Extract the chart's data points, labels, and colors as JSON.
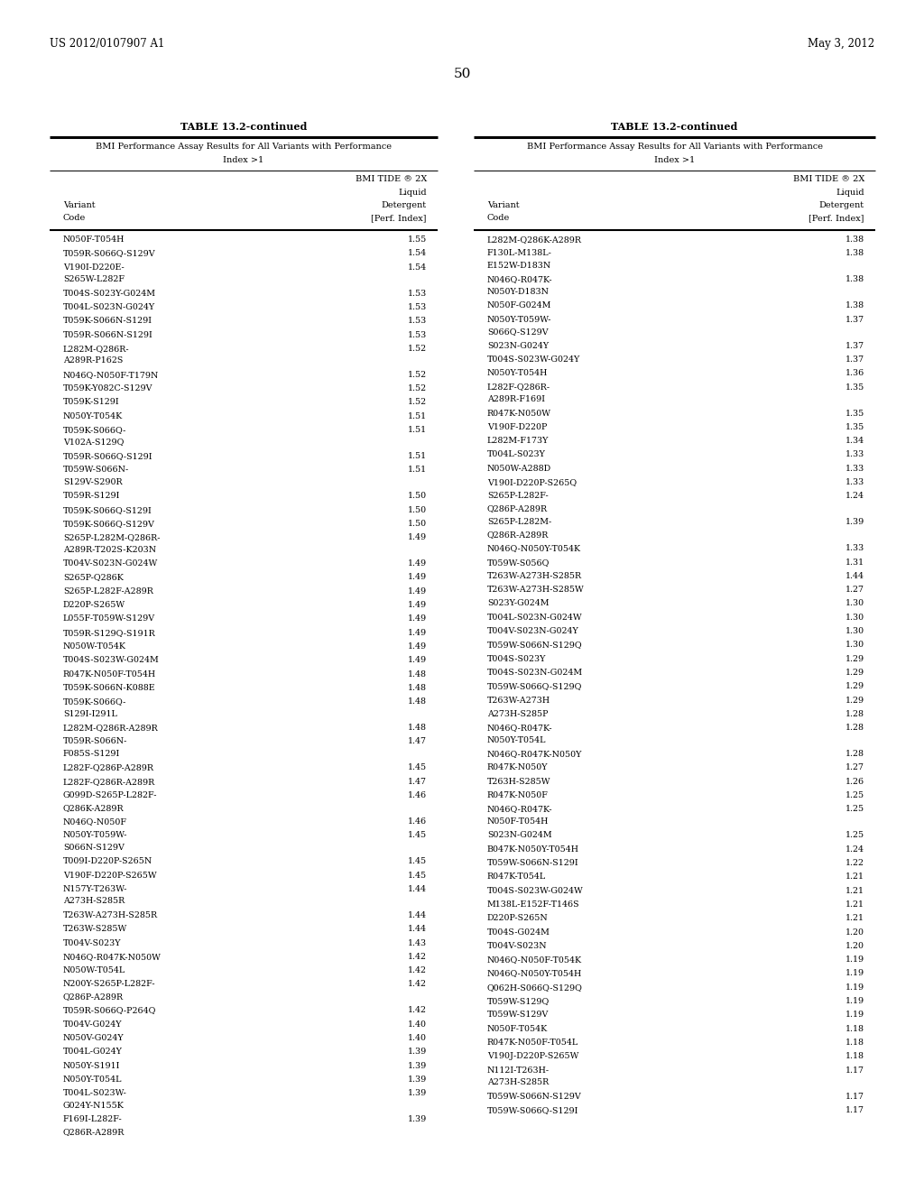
{
  "header_left": "US 2012/0107907 A1",
  "header_right": "May 3, 2012",
  "page_number": "50",
  "table_title": "TABLE 13.2-continued",
  "table_subtitle_line1": "BMI Performance Assay Results for All Variants with Performance",
  "table_subtitle_line2": "Index >1",
  "col1_header_line1": "Variant",
  "col1_header_line2": "Code",
  "col2_header_line1": "BMI TIDE ® 2X",
  "col2_header_line2": "Liquid",
  "col2_header_line3": "Detergent",
  "col2_header_line4": "[Perf. Index]",
  "left_data": [
    [
      "N050F-T054H",
      "1.55"
    ],
    [
      "T059R-S066Q-S129V",
      "1.54"
    ],
    [
      "V190I-D220E-S265W-L282F",
      "1.54"
    ],
    [
      "T004S-S023Y-G024M",
      "1.53"
    ],
    [
      "T004L-S023N-G024Y",
      "1.53"
    ],
    [
      "T059K-S066N-S129I",
      "1.53"
    ],
    [
      "T059R-S066N-S129I",
      "1.53"
    ],
    [
      "L282M-Q286R-A289R-P162S",
      "1.52"
    ],
    [
      "N046Q-N050F-T179N",
      "1.52"
    ],
    [
      "T059K-Y082C-S129V",
      "1.52"
    ],
    [
      "T059K-S129I",
      "1.52"
    ],
    [
      "N050Y-T054K",
      "1.51"
    ],
    [
      "T059K-S066Q-V102A-S129Q",
      "1.51"
    ],
    [
      "T059R-S066Q-S129I",
      "1.51"
    ],
    [
      "T059W-S066N-S129V-S290R",
      "1.51"
    ],
    [
      "T059R-S129I",
      "1.50"
    ],
    [
      "T059K-S066Q-S129I",
      "1.50"
    ],
    [
      "T059K-S066Q-S129V",
      "1.50"
    ],
    [
      "S265P-L282M-Q286R-A289R-T202S-K203N",
      "1.49"
    ],
    [
      "T004V-S023N-G024W",
      "1.49"
    ],
    [
      "S265P-Q286K",
      "1.49"
    ],
    [
      "S265P-L282F-A289R",
      "1.49"
    ],
    [
      "D220P-S265W",
      "1.49"
    ],
    [
      "L055F-T059W-S129V",
      "1.49"
    ],
    [
      "T059R-S129Q-S191R",
      "1.49"
    ],
    [
      "N050W-T054K",
      "1.49"
    ],
    [
      "T004S-S023W-G024M",
      "1.49"
    ],
    [
      "R047K-N050F-T054H",
      "1.48"
    ],
    [
      "T059K-S066N-K088E",
      "1.48"
    ],
    [
      "T059K-S066Q-S129I-I291L",
      "1.48"
    ],
    [
      "L282M-Q286R-A289R",
      "1.48"
    ],
    [
      "T059R-S066N-F085S-S129I",
      "1.47"
    ],
    [
      "L282F-Q286P-A289R",
      "1.45"
    ],
    [
      "L282F-Q286R-A289R",
      "1.47"
    ],
    [
      "G099D-S265P-L282F-Q286K-A289R",
      "1.46"
    ],
    [
      "N046Q-N050F",
      "1.46"
    ],
    [
      "N050Y-T059W-S066N-S129V",
      "1.45"
    ],
    [
      "T009I-D220P-S265N",
      "1.45"
    ],
    [
      "V190F-D220P-S265W",
      "1.45"
    ],
    [
      "N157Y-T263W-A273H-S285R",
      "1.44"
    ],
    [
      "T263W-A273H-S285R",
      "1.44"
    ],
    [
      "T263W-S285W",
      "1.44"
    ],
    [
      "T004V-S023Y",
      "1.43"
    ],
    [
      "N046Q-R047K-N050W",
      "1.42"
    ],
    [
      "N050W-T054L",
      "1.42"
    ],
    [
      "N200Y-S265P-L282F-Q286P-A289R",
      "1.42"
    ],
    [
      "T059R-S066Q-P264Q",
      "1.42"
    ],
    [
      "T004V-G024Y",
      "1.40"
    ],
    [
      "N050V-G024Y",
      "1.40"
    ],
    [
      "T004L-G024Y",
      "1.39"
    ],
    [
      "N050Y-S191I",
      "1.39"
    ],
    [
      "N050Y-T054L",
      "1.39"
    ],
    [
      "T004L-S023W-G024Y-N155K",
      "1.39"
    ],
    [
      "F169I-L282F-Q286R-A289R",
      "1.39"
    ]
  ],
  "right_data": [
    [
      "L282M-Q286K-A289R",
      "1.38"
    ],
    [
      "F130L-M138L-E152W-D183N",
      "1.38"
    ],
    [
      "N046Q-R047K-N050Y-D183N",
      "1.38"
    ],
    [
      "N050F-G024M",
      "1.38"
    ],
    [
      "N050Y-T059W-S066Q-S129V",
      "1.37"
    ],
    [
      "S023N-G024Y",
      "1.37"
    ],
    [
      "T004S-S023W-G024Y",
      "1.37"
    ],
    [
      "N050Y-T054H",
      "1.36"
    ],
    [
      "L282F-Q286R-A289R-F169I",
      "1.35"
    ],
    [
      "R047K-N050W",
      "1.35"
    ],
    [
      "V190F-D220P",
      "1.35"
    ],
    [
      "L282M-F173Y",
      "1.34"
    ],
    [
      "T004L-S023Y",
      "1.33"
    ],
    [
      "N050W-A288D",
      "1.33"
    ],
    [
      "V190I-D220P-S265Q",
      "1.33"
    ],
    [
      "S265P-L282F-Q286P-A289R",
      "1.24"
    ],
    [
      "S265P-L282M-Q286R-A289R",
      "1.39"
    ],
    [
      "N046Q-N050Y-T054K",
      "1.33"
    ],
    [
      "T059W-S056Q",
      "1.31"
    ],
    [
      "T263W-A273H-S285R",
      "1.44"
    ],
    [
      "T263W-A273H-S285W",
      "1.27"
    ],
    [
      "S023Y-G024M",
      "1.30"
    ],
    [
      "T004L-S023N-G024W",
      "1.30"
    ],
    [
      "T004V-S023N-G024Y",
      "1.30"
    ],
    [
      "T059W-S066N-S129Q",
      "1.30"
    ],
    [
      "T004S-S023Y",
      "1.29"
    ],
    [
      "T004S-S023N-G024M",
      "1.29"
    ],
    [
      "T059W-S066Q-S129Q",
      "1.29"
    ],
    [
      "T263W-A273H",
      "1.29"
    ],
    [
      "A273H-S285P",
      "1.28"
    ],
    [
      "N046Q-R047K-N050Y-T054L",
      "1.28"
    ],
    [
      "N046Q-R047K-N050Y",
      "1.28"
    ],
    [
      "R047K-N050Y",
      "1.27"
    ],
    [
      "T263H-S285W",
      "1.26"
    ],
    [
      "R047K-N050F",
      "1.25"
    ],
    [
      "N046Q-R047K-N050F-T054H",
      "1.25"
    ],
    [
      "S023N-G024M",
      "1.25"
    ],
    [
      "B047K-N050Y-T054H",
      "1.24"
    ],
    [
      "T059W-S066N-S129I",
      "1.22"
    ],
    [
      "R047K-T054L",
      "1.21"
    ],
    [
      "T004S-S023W-G024W",
      "1.21"
    ],
    [
      "M138L-E152F-T146S",
      "1.21"
    ],
    [
      "D220P-S265N",
      "1.21"
    ],
    [
      "T004S-G024M",
      "1.20"
    ],
    [
      "T004V-S023N",
      "1.20"
    ],
    [
      "N046Q-N050F-T054K",
      "1.19"
    ],
    [
      "N046Q-N050Y-T054H",
      "1.19"
    ],
    [
      "Q062H-S066Q-S129Q",
      "1.19"
    ],
    [
      "T059W-S129Q",
      "1.19"
    ],
    [
      "T059W-S129V",
      "1.19"
    ],
    [
      "N050F-T054K",
      "1.18"
    ],
    [
      "R047K-N050F-T054L",
      "1.18"
    ],
    [
      "V190J-D220P-S265W",
      "1.18"
    ],
    [
      "N112I-T263H-A273H-S285R",
      "1.17"
    ],
    [
      "T059W-S066N-S129V",
      "1.17"
    ],
    [
      "T059W-S066Q-S129I",
      "1.17"
    ]
  ],
  "wrap_threshold": 20
}
